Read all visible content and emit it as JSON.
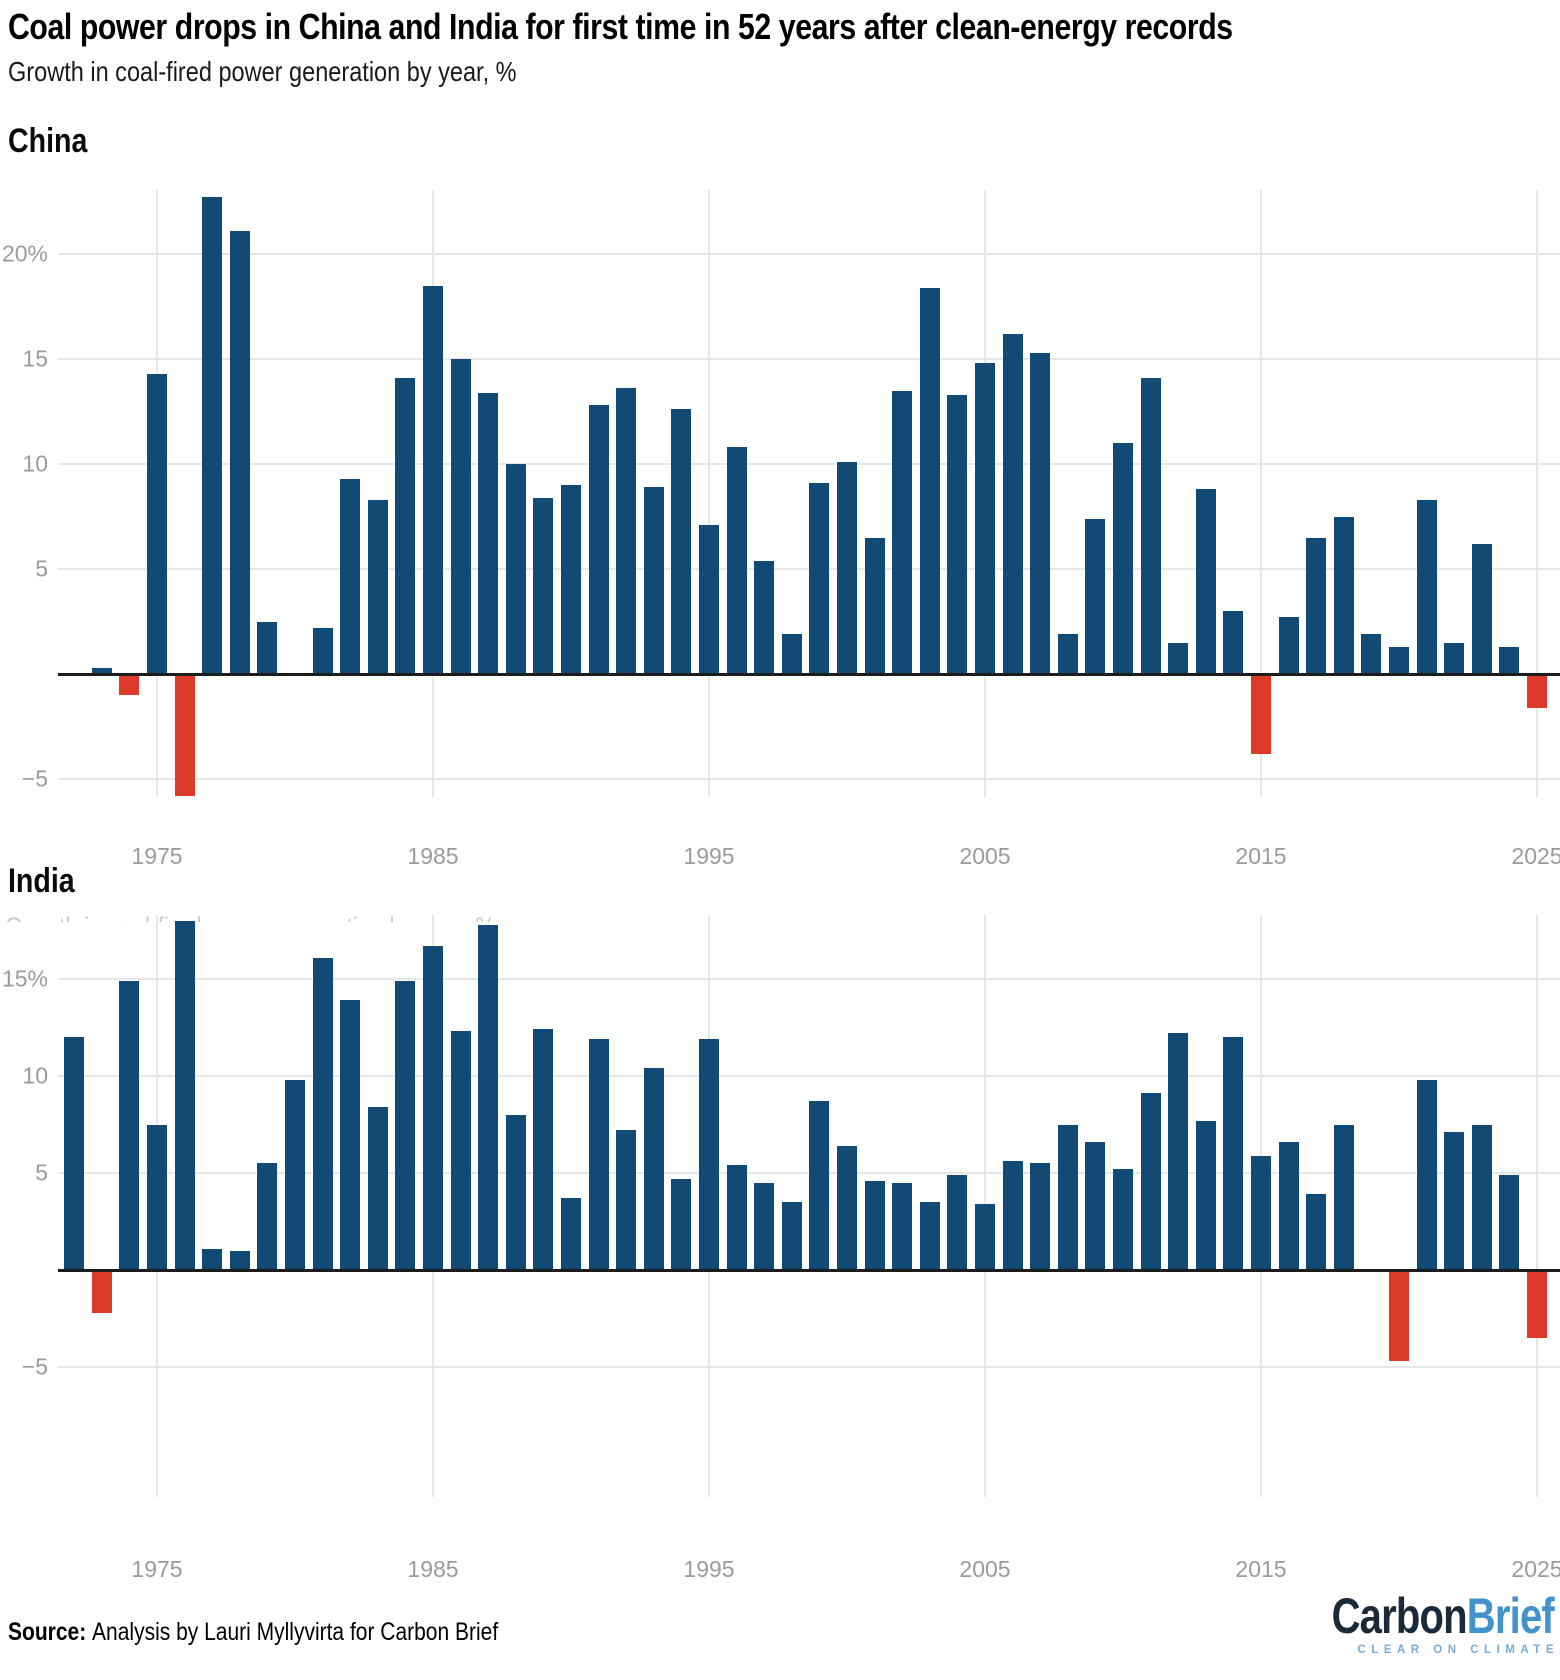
{
  "title": "Coal power drops in China and India for first time in 52 years after clean-energy records",
  "subtitle": "Growth in coal-fired power generation by year, %",
  "source": {
    "label": "Source:",
    "text": "Analysis by Lauri Myllyvirta for Carbon Brief"
  },
  "logo": {
    "part1": "Carbon",
    "part2": "Brief",
    "tagline": "CLEAR ON CLIMATE"
  },
  "colors": {
    "bar_positive": "#114b75",
    "bar_negative": "#dd3b2a",
    "gridline": "#e7e7e7",
    "baseline": "#1c1c1c",
    "axis_text": "#9b9b9b",
    "logo_dark": "#1b2a38",
    "logo_blue": "#4293cc",
    "logo_tagline": "#76add8"
  },
  "chart_data": [
    {
      "type": "bar",
      "title": "China",
      "ylabel": "Growth in coal-fired power generation, %",
      "grid": true,
      "ylim": [
        -6.6,
        23.6
      ],
      "categories": [
        1973,
        1974,
        1975,
        1976,
        1977,
        1978,
        1979,
        1980,
        1981,
        1982,
        1983,
        1984,
        1985,
        1986,
        1987,
        1988,
        1989,
        1990,
        1991,
        1992,
        1993,
        1994,
        1995,
        1996,
        1997,
        1998,
        1999,
        2000,
        2001,
        2002,
        2003,
        2004,
        2005,
        2006,
        2007,
        2008,
        2009,
        2010,
        2011,
        2012,
        2013,
        2014,
        2015,
        2016,
        2017,
        2018,
        2019,
        2020,
        2021,
        2022,
        2023,
        2024,
        2025
      ],
      "values": [
        0.3,
        -0.9,
        14.3,
        -5.7,
        22.7,
        21.1,
        2.5,
        0,
        2.2,
        9.3,
        8.3,
        14.1,
        18.5,
        15.0,
        13.4,
        10.0,
        8.4,
        9.0,
        12.8,
        13.6,
        8.9,
        12.6,
        7.1,
        10.8,
        5.4,
        1.9,
        9.1,
        10.1,
        6.5,
        13.5,
        18.4,
        13.3,
        14.8,
        16.2,
        15.3,
        1.9,
        7.4,
        11.0,
        14.1,
        1.5,
        8.8,
        3.0,
        -3.7,
        2.7,
        6.5,
        7.5,
        1.9,
        1.3,
        8.3,
        1.5,
        6.2,
        1.3,
        -1.5
      ],
      "yticks": [
        {
          "value": 20,
          "label": "20%"
        },
        {
          "value": 15,
          "label": "15"
        },
        {
          "value": 10,
          "label": "10"
        },
        {
          "value": 5,
          "label": "5"
        },
        {
          "value": -5,
          "label": "−5"
        }
      ],
      "xticks": [
        {
          "value": 1975,
          "label": "1975"
        },
        {
          "value": 1985,
          "label": "1985"
        },
        {
          "value": 1995,
          "label": "1995"
        },
        {
          "value": 2005,
          "label": "2005"
        },
        {
          "value": 2015,
          "label": "2015"
        },
        {
          "value": 2025,
          "label": "2025"
        }
      ]
    },
    {
      "type": "bar",
      "title": "India",
      "ylabel": "Growth in coal-fired power generation, %",
      "clipped_subtitle": "Growth in coal-fired power generation by year, %",
      "grid": true,
      "ylim": [
        -6.3,
        19.0
      ],
      "categories": [
        1972,
        1973,
        1974,
        1975,
        1976,
        1977,
        1978,
        1979,
        1980,
        1981,
        1982,
        1983,
        1984,
        1985,
        1986,
        1987,
        1988,
        1989,
        1990,
        1991,
        1992,
        1993,
        1994,
        1995,
        1996,
        1997,
        1998,
        1999,
        2000,
        2001,
        2002,
        2003,
        2004,
        2005,
        2006,
        2007,
        2008,
        2009,
        2010,
        2011,
        2012,
        2013,
        2014,
        2015,
        2016,
        2017,
        2018,
        2019,
        2020,
        2021,
        2022,
        2023,
        2024,
        2025
      ],
      "values": [
        12.0,
        -2.1,
        14.9,
        7.5,
        18.0,
        1.1,
        1.0,
        5.5,
        9.8,
        16.1,
        13.9,
        8.4,
        14.9,
        16.7,
        12.3,
        17.8,
        8.0,
        12.4,
        3.7,
        11.9,
        7.2,
        10.4,
        4.7,
        11.9,
        5.4,
        4.5,
        3.5,
        8.7,
        6.4,
        4.6,
        4.5,
        3.5,
        4.9,
        3.4,
        5.6,
        5.5,
        7.5,
        6.6,
        5.2,
        9.1,
        12.2,
        7.7,
        12.0,
        5.9,
        6.6,
        3.9,
        7.5,
        0,
        -4.6,
        9.8,
        7.1,
        7.5,
        4.9,
        -3.4
      ],
      "yticks": [
        {
          "value": 15,
          "label": "15%"
        },
        {
          "value": 10,
          "label": "10"
        },
        {
          "value": 5,
          "label": "5"
        },
        {
          "value": -5,
          "label": "−5"
        }
      ],
      "xticks": [
        {
          "value": 1975,
          "label": "1975"
        },
        {
          "value": 1985,
          "label": "1985"
        },
        {
          "value": 1995,
          "label": "1995"
        },
        {
          "value": 2005,
          "label": "2005"
        },
        {
          "value": 2015,
          "label": "2015"
        },
        {
          "value": 2025,
          "label": "2025"
        }
      ]
    }
  ]
}
